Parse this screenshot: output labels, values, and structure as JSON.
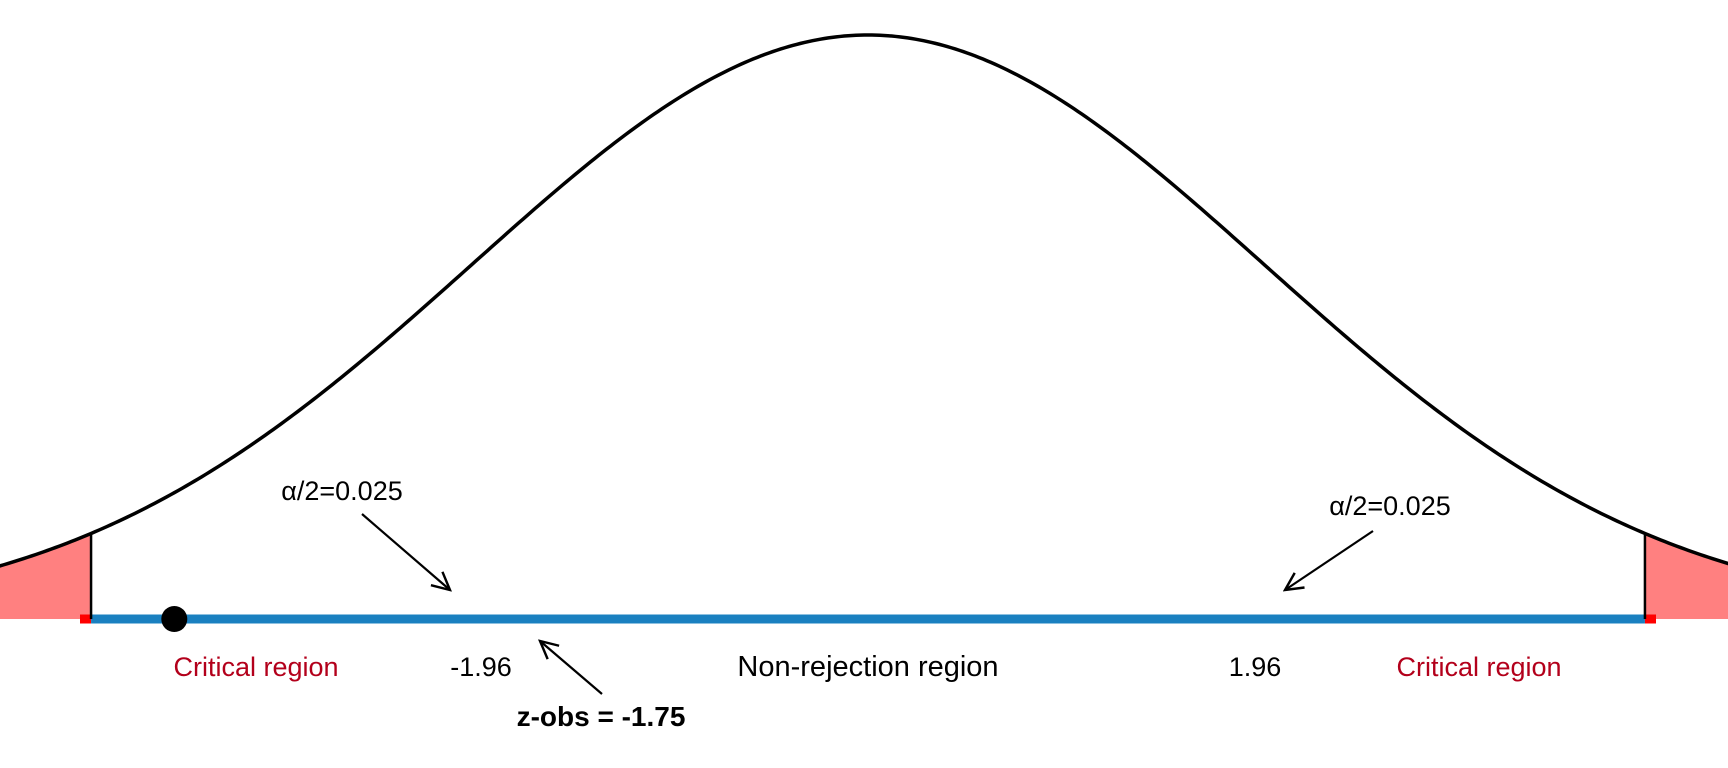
{
  "colors": {
    "curve": "#000000",
    "critical_line": "#ff0000",
    "critical_fill": "#ff8080",
    "critical_text": "#b3001b",
    "nonrejection_line": "#1a80c0",
    "text": "#000000"
  },
  "distribution": {
    "type": "standard-normal",
    "critical_values": [
      -1.96,
      1.96
    ],
    "z_obs": -1.75
  },
  "labels": {
    "left_critical_region": "Critical region",
    "right_critical_region": "Critical region",
    "non_rejection_region": "Non-rejection region",
    "left_critical_value": "-1.96",
    "right_critical_value": "1.96",
    "left_alpha": "α/2=0.025",
    "right_alpha": "α/2=0.025",
    "z_obs": "z-obs = -1.75"
  }
}
